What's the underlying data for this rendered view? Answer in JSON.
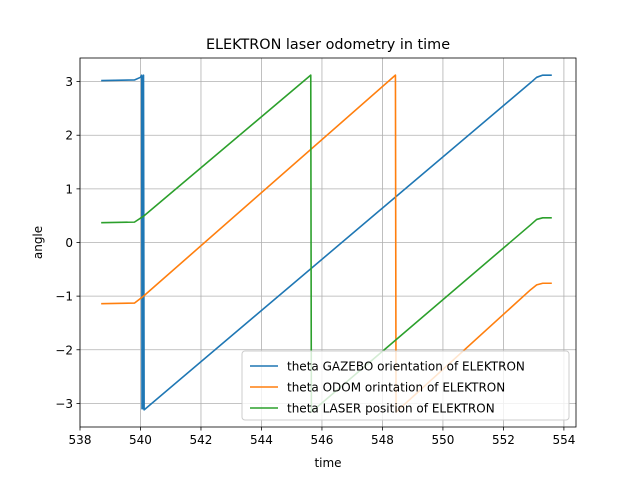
{
  "chart_data": {
    "type": "line",
    "title": "ELEKTRON laser odometry in time",
    "xlabel": "time",
    "ylabel": "angle",
    "xlim": [
      538,
      554.4
    ],
    "ylim": [
      -3.44,
      3.44
    ],
    "xticks": [
      538,
      540,
      542,
      544,
      546,
      548,
      550,
      552,
      554
    ],
    "yticks": [
      -3,
      -2,
      -1,
      0,
      1,
      2,
      3
    ],
    "grid": true,
    "legend_position": "lower-right",
    "series": [
      {
        "name": "theta GAZEBO orientation of ELEKTRON",
        "color": "#1f77b4",
        "x": [
          538.7,
          539.8,
          540.0,
          540.04,
          540.05,
          540.08,
          540.09,
          540.1,
          540.12,
          552.9,
          553.1,
          553.3,
          553.6
        ],
        "y": [
          3.02,
          3.03,
          3.08,
          3.12,
          -3.1,
          3.1,
          -3.1,
          3.12,
          -3.12,
          2.98,
          3.08,
          3.12,
          3.12
        ]
      },
      {
        "name": "theta ODOM orintation of ELEKTRON",
        "color": "#ff7f0e",
        "x": [
          538.7,
          539.8,
          540.1,
          548.43,
          548.45,
          552.9,
          553.1,
          553.3,
          553.6
        ],
        "y": [
          -1.14,
          -1.13,
          -1.0,
          3.12,
          -3.16,
          -0.88,
          -0.79,
          -0.76,
          -0.76
        ]
      },
      {
        "name": "theta LASER position of ELEKTRON",
        "color": "#2ca02c",
        "x": [
          538.7,
          539.8,
          540.1,
          545.63,
          545.65,
          552.9,
          553.1,
          553.3,
          553.6
        ],
        "y": [
          0.37,
          0.38,
          0.49,
          3.12,
          -3.16,
          0.33,
          0.43,
          0.46,
          0.46
        ]
      }
    ]
  }
}
